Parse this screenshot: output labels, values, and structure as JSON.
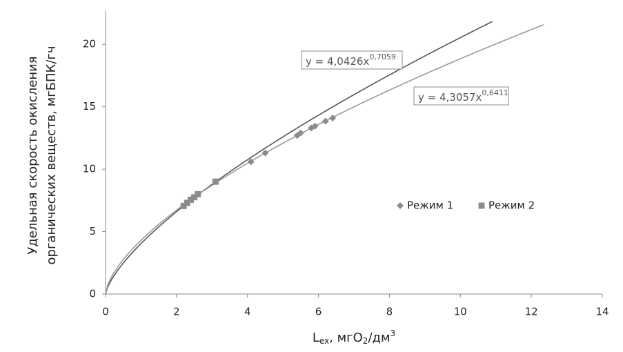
{
  "chart_data": {
    "type": "scatter",
    "y_label": [
      "Удельная скорость окисления",
      "органических веществ, мгБПК/гч"
    ],
    "x_label": [
      "L",
      "ex",
      ", мгО",
      "2",
      "/дм",
      "3"
    ],
    "xlim": [
      0,
      14
    ],
    "xticks": [
      0,
      2,
      4,
      6,
      8,
      10,
      12,
      14
    ],
    "ylim": [
      0,
      22.5
    ],
    "yticks": [
      0,
      5,
      10,
      15,
      20
    ],
    "legend": "right",
    "series": [
      {
        "name": "Режим 1",
        "color": "#8c8c8c",
        "marker": "diamond",
        "x": [
          4.1,
          4.5,
          5.4,
          5.5,
          5.8,
          5.9,
          6.2,
          6.4
        ],
        "values": [
          10.6,
          11.3,
          12.7,
          12.9,
          13.3,
          13.45,
          13.85,
          14.1
        ]
      },
      {
        "name": "Режим 2",
        "color": "#8c8c8c",
        "marker": "square",
        "x": [
          2.2,
          2.3,
          2.4,
          2.5,
          2.6,
          3.1
        ],
        "values": [
          7.05,
          7.3,
          7.55,
          7.75,
          8.0,
          9.0
        ]
      }
    ],
    "trendlines": [
      {
        "label": "y = 4,0426x",
        "exponent": "0,7059",
        "a": 4.0426,
        "b": 0.7059,
        "xrange": [
          0,
          10.9
        ],
        "color": "#555555"
      },
      {
        "label": "y = 4,3057x",
        "exponent": "0,6411",
        "a": 4.3057,
        "b": 0.6411,
        "xrange": [
          0,
          12.35
        ],
        "color": "#999999"
      }
    ]
  }
}
